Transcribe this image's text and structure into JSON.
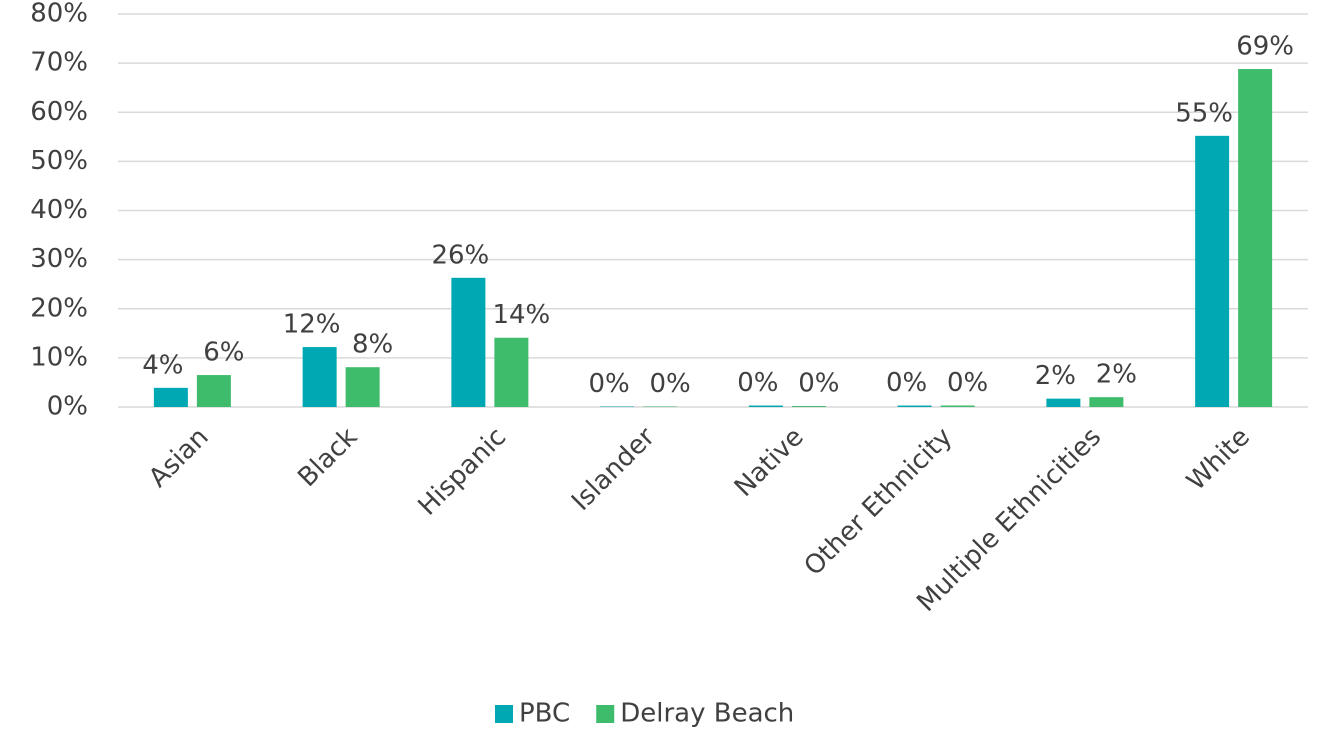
{
  "chart_data": {
    "type": "bar",
    "categories": [
      "Asian",
      "Black",
      "Hispanic",
      "Islander",
      "Native",
      "Other Ethnicity",
      "Multiple Ethnicities",
      "White"
    ],
    "series": [
      {
        "name": "PBC",
        "color": "#00a8b4",
        "values": [
          3.9,
          12.2,
          26.3,
          0.1,
          0.3,
          0.3,
          1.7,
          55.2
        ],
        "value_labels": [
          "4%",
          "12%",
          "26%",
          "0%",
          "0%",
          "0%",
          "2%",
          "55%"
        ]
      },
      {
        "name": "Delray Beach",
        "color": "#3fbb6c",
        "values": [
          6.5,
          8.1,
          14.1,
          0.1,
          0.2,
          0.3,
          2.0,
          68.8
        ],
        "value_labels": [
          "6%",
          "8%",
          "14%",
          "0%",
          "0%",
          "0%",
          "2%",
          "69%"
        ]
      }
    ],
    "ylim": [
      0,
      80
    ],
    "yticks": [
      {
        "value": 0,
        "label": "0%"
      },
      {
        "value": 10,
        "label": "10%"
      },
      {
        "value": 20,
        "label": "20%"
      },
      {
        "value": 30,
        "label": "30%"
      },
      {
        "value": 40,
        "label": "40%"
      },
      {
        "value": 50,
        "label": "50%"
      },
      {
        "value": 60,
        "label": "60%"
      },
      {
        "value": 70,
        "label": "70%"
      },
      {
        "value": 80,
        "label": "80%"
      }
    ],
    "grid": true,
    "legend": "bottom"
  }
}
